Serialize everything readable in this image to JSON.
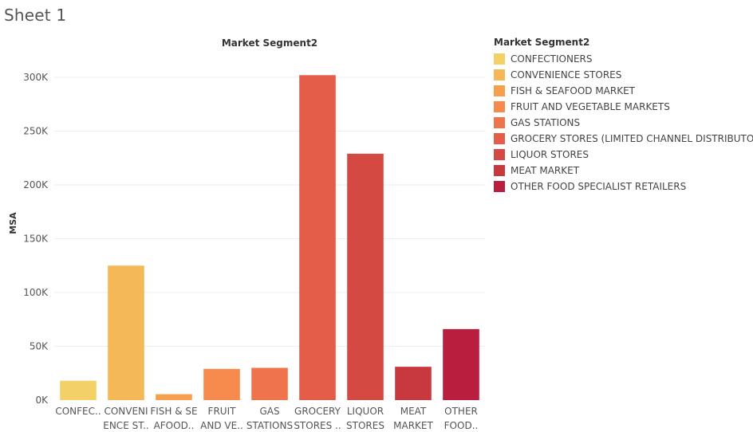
{
  "sheet_title": "Sheet 1",
  "chart_data": {
    "type": "bar",
    "title": "Market Segment2",
    "xlabel": "",
    "ylabel": "MSA",
    "ylim": [
      0,
      320000
    ],
    "yticks": [
      0,
      50000,
      100000,
      150000,
      200000,
      250000,
      300000
    ],
    "ytick_labels": [
      "0K",
      "50K",
      "100K",
      "150K",
      "200K",
      "250K",
      "300K"
    ],
    "grid": true,
    "legend_position": "right",
    "legend_title": "Market Segment2",
    "categories": [
      "CONFECTIONERS",
      "CONVENIENCE STORES",
      "FISH & SEAFOOD MARKET",
      "FRUIT AND VEGETABLE MARKETS",
      "GAS STATIONS",
      "GROCERY STORES (LIMITED CHANNEL DISTRIBUTOR)",
      "LIQUOR STORES",
      "MEAT MARKET",
      "OTHER FOOD SPECIALIST RETAILERS"
    ],
    "category_tick_labels": [
      [
        "CONFEC.."
      ],
      [
        "CONVENI",
        "ENCE ST.."
      ],
      [
        "FISH & SE",
        "AFOOD.."
      ],
      [
        "FRUIT",
        "AND VE.."
      ],
      [
        "GAS",
        "STATIONS"
      ],
      [
        "GROCERY",
        "STORES .."
      ],
      [
        "LIQUOR",
        "STORES"
      ],
      [
        "MEAT",
        "MARKET"
      ],
      [
        "OTHER",
        "FOOD.."
      ]
    ],
    "values": [
      18000,
      125000,
      5500,
      29000,
      30000,
      302000,
      229000,
      31000,
      66000
    ],
    "colors": [
      "#f4d166",
      "#f4b857",
      "#f6a04d",
      "#f78a4d",
      "#f0744b",
      "#e35d48",
      "#d44a43",
      "#c8393f",
      "#b91e3f"
    ]
  }
}
